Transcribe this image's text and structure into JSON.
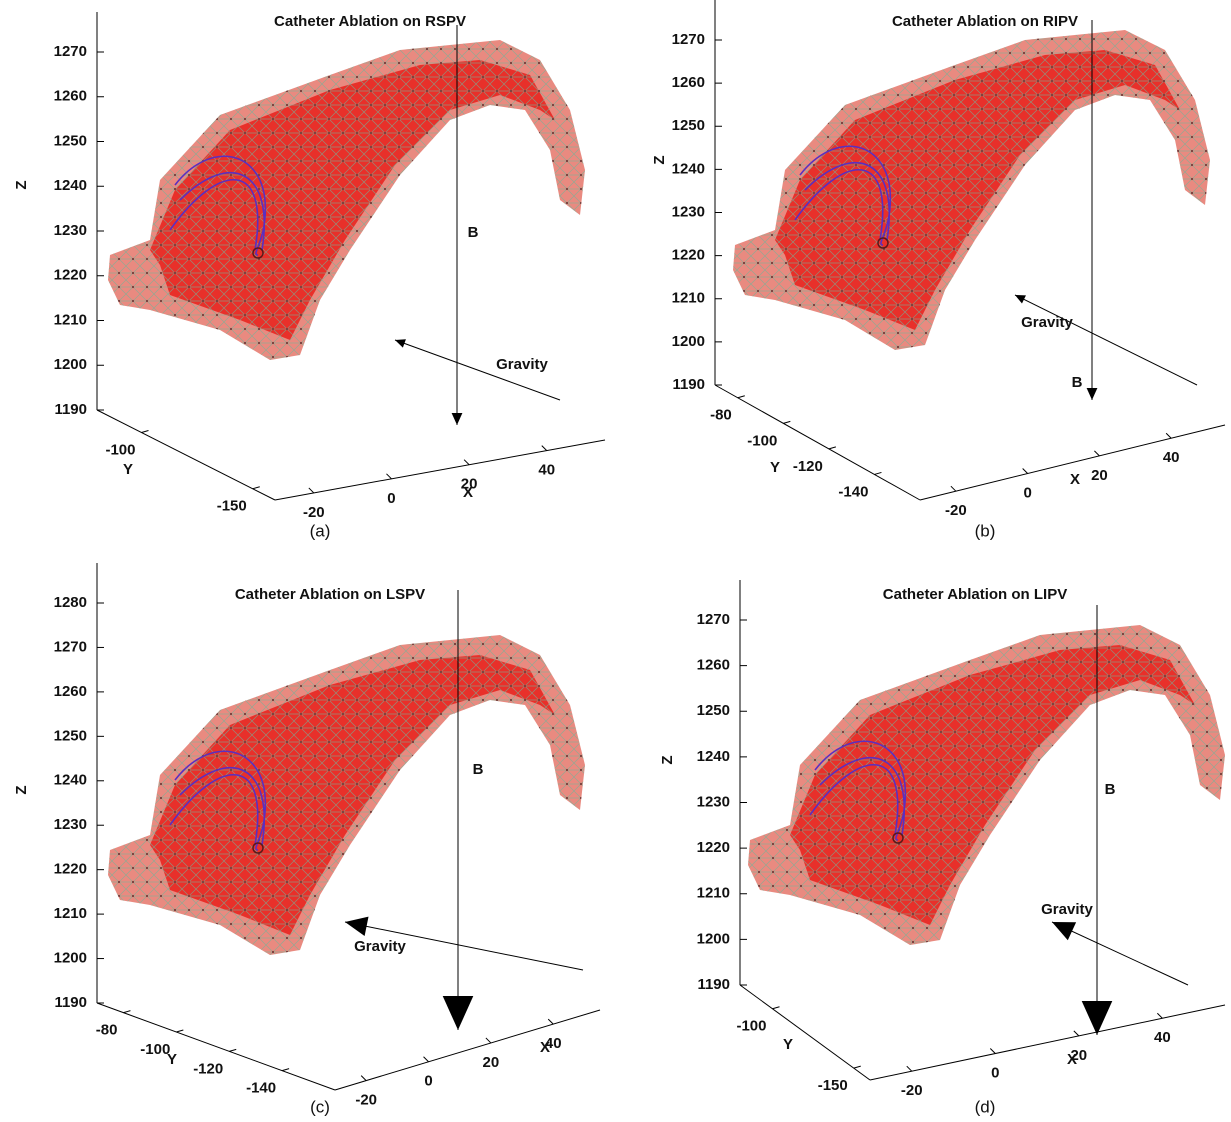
{
  "chart_data": [
    {
      "type": "mesh3d",
      "title": "Catheter Ablation on RSPV",
      "caption": "(a)",
      "xlabel": "X",
      "ylabel": "Y",
      "zlabel": "Z",
      "annotations": [
        "B",
        "Gravity"
      ],
      "xlim": [
        -30,
        55
      ],
      "ylim": [
        -80,
        -160
      ],
      "zlim": [
        1190,
        1270
      ],
      "xticks": [
        -20,
        0,
        20,
        40
      ],
      "yticks": [
        -150,
        -100
      ],
      "zticks": [
        1190,
        1200,
        1210,
        1220,
        1230,
        1240,
        1250,
        1260,
        1270
      ]
    },
    {
      "type": "mesh3d",
      "title": "Catheter Ablation on RIPV",
      "caption": "(b)",
      "xlabel": "X",
      "ylabel": "Y",
      "zlabel": "Z",
      "annotations": [
        "B",
        "Gravity"
      ],
      "xlim": [
        -30,
        55
      ],
      "ylim": [
        -70,
        -160
      ],
      "zlim": [
        1190,
        1270
      ],
      "xticks": [
        -20,
        0,
        20,
        40
      ],
      "yticks": [
        -140,
        -120,
        -100,
        -80
      ],
      "zticks": [
        1190,
        1200,
        1210,
        1220,
        1230,
        1240,
        1250,
        1260,
        1270
      ]
    },
    {
      "type": "mesh3d",
      "title": "Catheter Ablation on LSPV",
      "caption": "(c)",
      "xlabel": "X",
      "ylabel": "Y",
      "zlabel": "Z",
      "annotations": [
        "B",
        "Gravity"
      ],
      "xlim": [
        -30,
        55
      ],
      "ylim": [
        -70,
        -160
      ],
      "zlim": [
        1190,
        1280
      ],
      "xticks": [
        -20,
        0,
        20,
        40
      ],
      "yticks": [
        -140,
        -120,
        -100,
        -80
      ],
      "zticks": [
        1190,
        1200,
        1210,
        1220,
        1230,
        1240,
        1250,
        1260,
        1270,
        1280
      ]
    },
    {
      "type": "mesh3d",
      "title": "Catheter Ablation on LIPV",
      "caption": "(d)",
      "xlabel": "X",
      "ylabel": "Y",
      "zlabel": "Z",
      "annotations": [
        "B",
        "Gravity"
      ],
      "xlim": [
        -30,
        55
      ],
      "ylim": [
        -80,
        -160
      ],
      "zlim": [
        1190,
        1270
      ],
      "xticks": [
        -20,
        0,
        20,
        40
      ],
      "yticks": [
        -150,
        -100
      ],
      "zticks": [
        1190,
        1200,
        1210,
        1220,
        1230,
        1240,
        1250,
        1260,
        1270
      ]
    }
  ]
}
